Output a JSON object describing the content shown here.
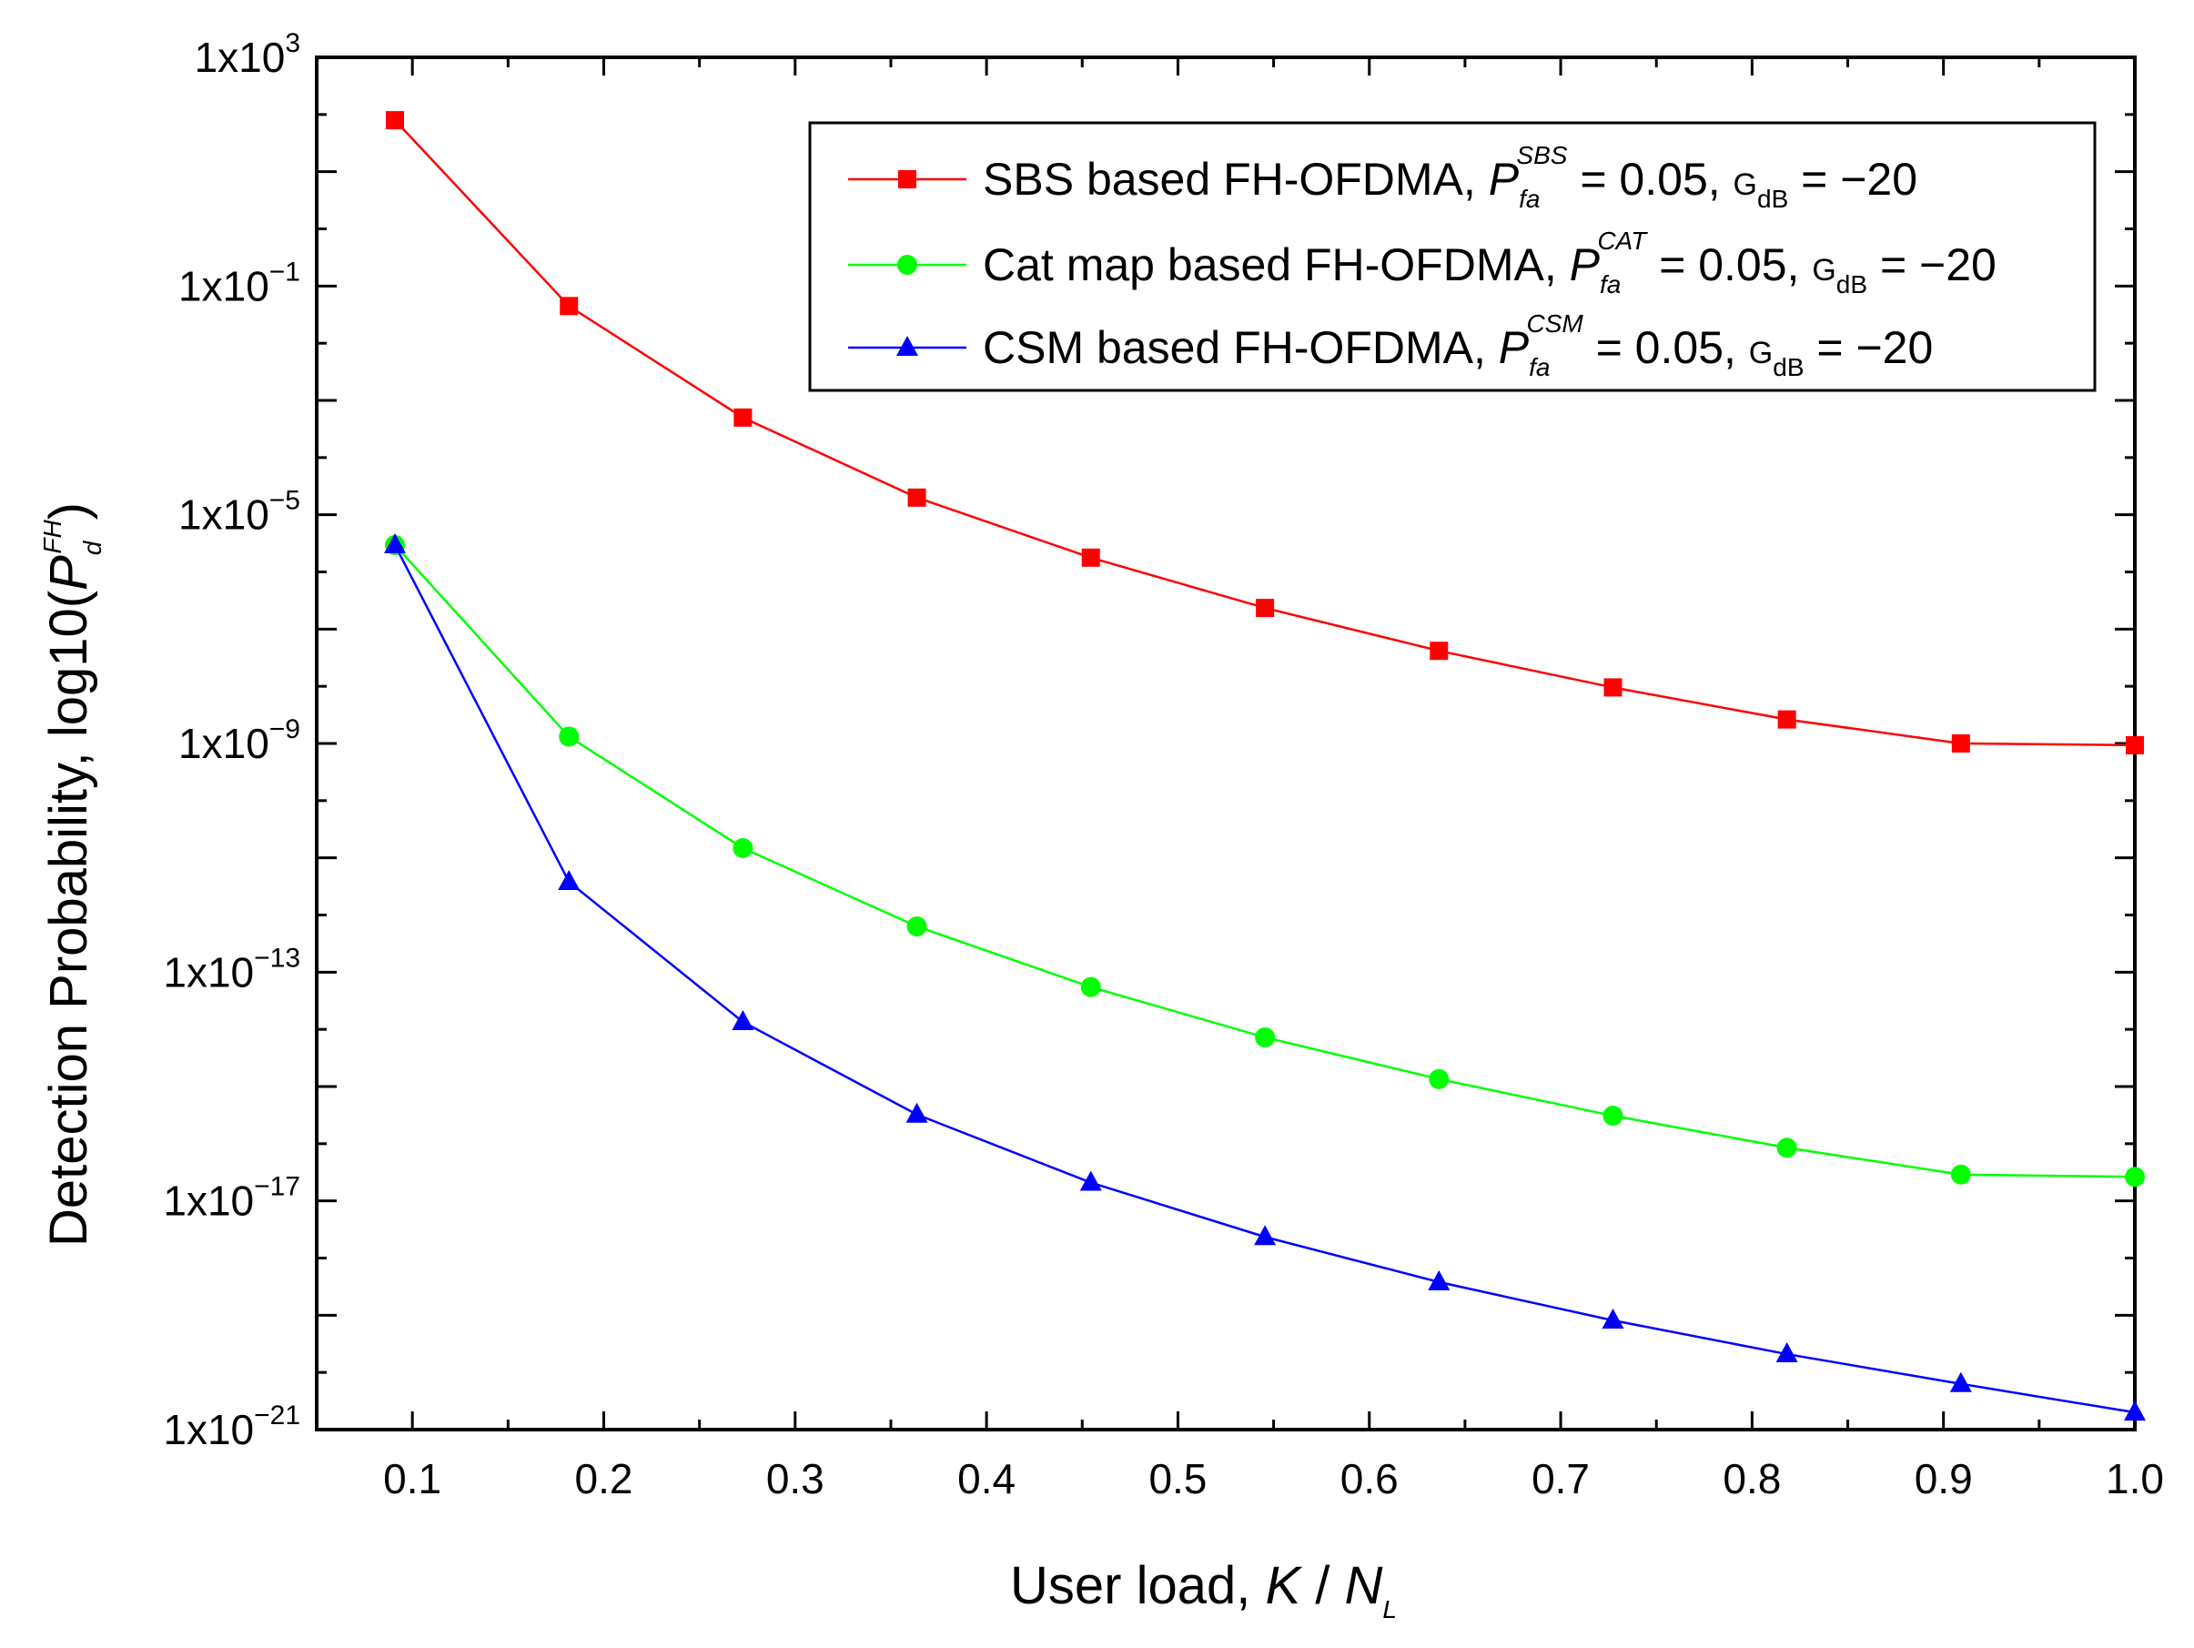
{
  "chart_data": {
    "type": "line",
    "title": "",
    "x": [
      0.0909,
      0.1818,
      0.2727,
      0.3636,
      0.4545,
      0.5455,
      0.6364,
      0.7273,
      0.8182,
      0.9091,
      1.0
    ],
    "xlim": [
      0.05,
      1.0
    ],
    "ylim_log10": [
      -21,
      3
    ],
    "x_ticks": [
      "0.1",
      "0.2",
      "0.3",
      "0.4",
      "0.5",
      "0.6",
      "0.7",
      "0.8",
      "0.9",
      "1.0"
    ],
    "x_tick_values": [
      0.1,
      0.2,
      0.3,
      0.4,
      0.5,
      0.6,
      0.7,
      0.8,
      0.9,
      1.0
    ],
    "y_ticks": [
      {
        "base": "1x10",
        "exp": "3",
        "log": 3
      },
      {
        "base": "1x10",
        "exp": "-1",
        "log": -1
      },
      {
        "base": "1x10",
        "exp": "-5",
        "log": -5
      },
      {
        "base": "1x10",
        "exp": "-9",
        "log": -9
      },
      {
        "base": "1x10",
        "exp": "-13",
        "log": -13
      },
      {
        "base": "1x10",
        "exp": "-17",
        "log": -17
      },
      {
        "base": "1x10",
        "exp": "-21",
        "log": -21
      }
    ],
    "xlabel": {
      "text": "User load, ",
      "var1": "K",
      "sep": " / ",
      "var2": "N",
      "sub": "L"
    },
    "ylabel": {
      "text": "Detection Probability, log10(",
      "var": "P",
      "sub": "d",
      "sup": "FH",
      "close": ")"
    },
    "series": [
      {
        "name": "SBS based FH-OFDMA",
        "color": "#ff0000",
        "marker": "square",
        "legend": {
          "prefix": "SBS based FH-OFDMA, ",
          "p": "P",
          "sub": "fa",
          "sup": "SBS",
          "eq": " = 0.05, ",
          "g": "G",
          "gsub": "dB",
          "geq": " = −20"
        },
        "log10_values": [
          1.9,
          -1.35,
          -3.3,
          -4.7,
          -5.75,
          -6.63,
          -7.38,
          -8.02,
          -8.58,
          -9.0,
          -9.03
        ]
      },
      {
        "name": "Cat map based FH-OFDMA",
        "color": "#00ff00",
        "marker": "circle",
        "legend": {
          "prefix": "Cat map based FH-OFDMA, ",
          "p": "P",
          "sub": "fa",
          "sup": "CAT",
          "eq": " = 0.05, ",
          "g": "G",
          "gsub": "dB",
          "geq": " = −20"
        },
        "log10_values": [
          -5.53,
          -8.88,
          -10.83,
          -12.2,
          -13.26,
          -14.14,
          -14.87,
          -15.51,
          -16.07,
          -16.54,
          -16.58
        ]
      },
      {
        "name": "CSM based FH-OFDMA",
        "color": "#0000ff",
        "marker": "triangle",
        "legend": {
          "prefix": "CSM based FH-OFDMA, ",
          "p": "P",
          "sub": "fa",
          "sup": "CSM",
          "eq": " = 0.05, ",
          "g": "G",
          "gsub": "dB",
          "geq": " = −20"
        },
        "log10_values": [
          -5.53,
          -11.42,
          -13.87,
          -15.49,
          -16.68,
          -17.63,
          -18.42,
          -19.09,
          -19.68,
          -20.2,
          -20.7
        ]
      }
    ],
    "legend_position": "top-right",
    "grid": false
  }
}
